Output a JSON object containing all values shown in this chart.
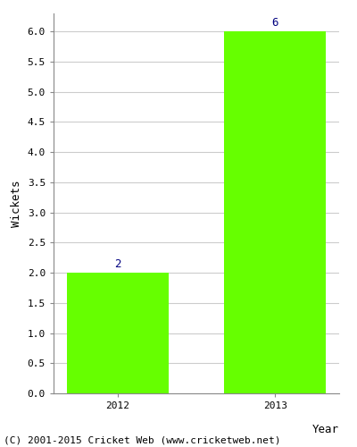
{
  "categories": [
    "2012",
    "2013"
  ],
  "values": [
    2,
    6
  ],
  "bar_color": "#66ff00",
  "bar_edgecolor": "#66ff00",
  "xlabel": "Year",
  "ylabel": "Wickets",
  "ylim": [
    0,
    6.3
  ],
  "yticks": [
    0.0,
    0.5,
    1.0,
    1.5,
    2.0,
    2.5,
    3.0,
    3.5,
    4.0,
    4.5,
    5.0,
    5.5,
    6.0
  ],
  "annotation_color": "#000080",
  "annotation_fontsize": 9,
  "axis_label_fontsize": 9,
  "tick_fontsize": 8,
  "grid_color": "#cccccc",
  "background_color": "#ffffff",
  "footer_text": "(C) 2001-2015 Cricket Web (www.cricketweb.net)",
  "footer_fontsize": 8,
  "bar_width": 0.65
}
